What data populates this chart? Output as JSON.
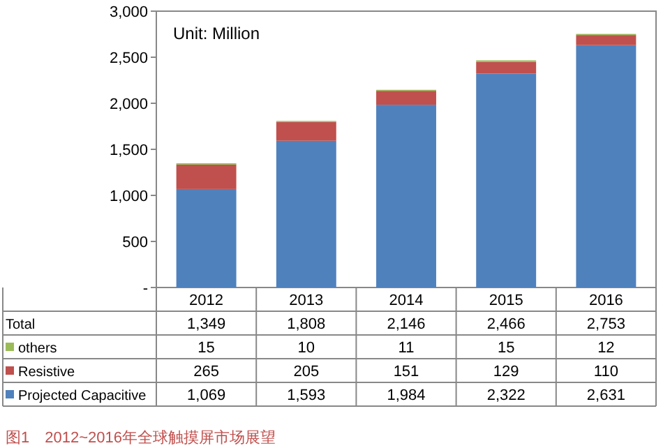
{
  "chart_data": {
    "type": "bar",
    "stacked": true,
    "categories": [
      "2012",
      "2013",
      "2014",
      "2015",
      "2016"
    ],
    "series": [
      {
        "name": "Projected Capacitive",
        "color": "#4f81bd",
        "values": [
          1069,
          1593,
          1984,
          2322,
          2631
        ],
        "value_labels": [
          "1,069",
          "1,593",
          "1,984",
          "2,322",
          "2,631"
        ]
      },
      {
        "name": "Resistive",
        "color": "#c0504d",
        "values": [
          265,
          205,
          151,
          129,
          110
        ],
        "value_labels": [
          "265",
          "205",
          "151",
          "129",
          "110"
        ]
      },
      {
        "name": "others",
        "color": "#9bbb59",
        "values": [
          15,
          10,
          11,
          15,
          12
        ],
        "value_labels": [
          "15",
          "10",
          "11",
          "15",
          "12"
        ]
      }
    ],
    "totals": [
      "1,349",
      "1,808",
      "2,146",
      "2,466",
      "2,753"
    ],
    "ylim": [
      0,
      3000
    ],
    "yticks": [
      {
        "value": 0,
        "label": "-"
      },
      {
        "value": 500,
        "label": "500"
      },
      {
        "value": 1000,
        "label": "1,000"
      },
      {
        "value": 1500,
        "label": "1,500"
      },
      {
        "value": 2000,
        "label": "2,000"
      },
      {
        "value": 2500,
        "label": "2,500"
      },
      {
        "value": 3000,
        "label": "3,000"
      }
    ],
    "legend": "bottom",
    "annotations": [
      "Unit: Million",
      "Total",
      "图1　2012~2016年全球触摸屏市场展望"
    ]
  }
}
